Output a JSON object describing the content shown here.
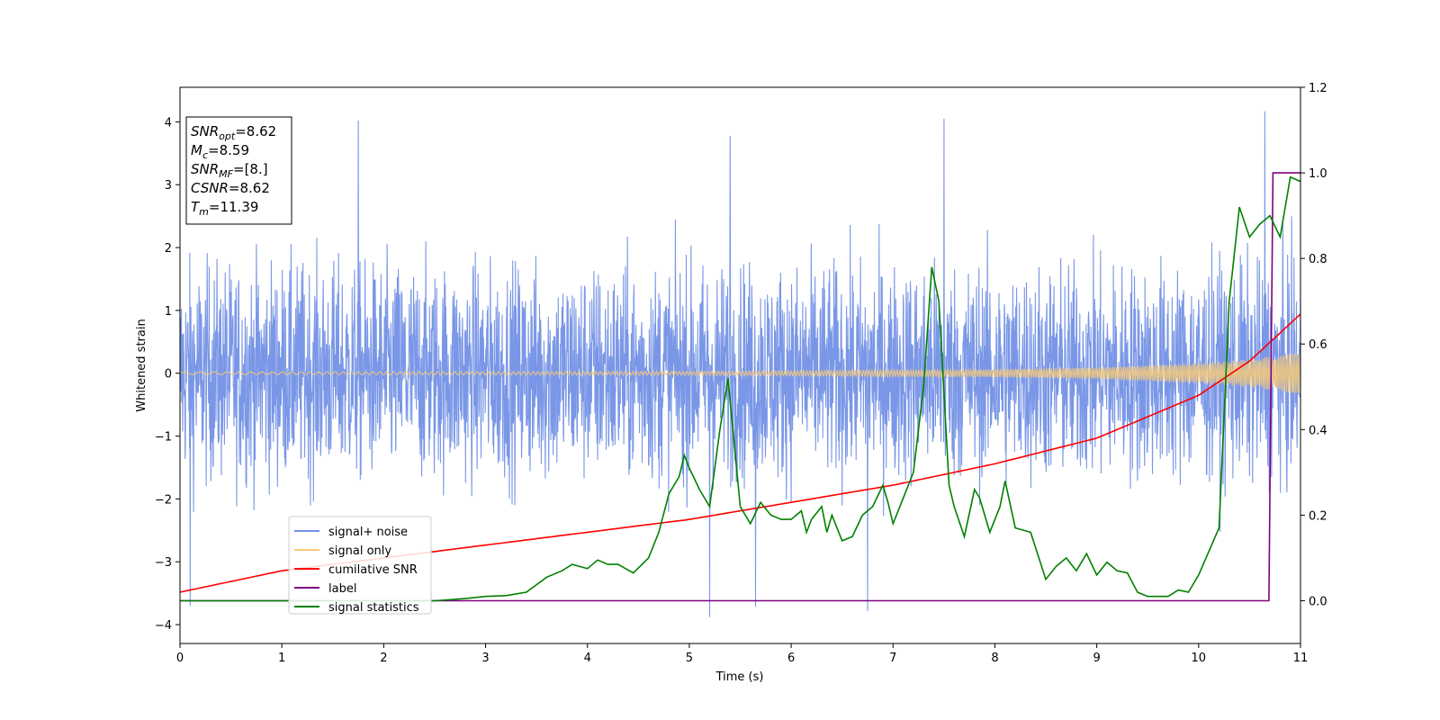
{
  "chart_data": {
    "type": "line",
    "xlabel": "Time (s)",
    "ylabel": "Whitened strain",
    "xlim": [
      0,
      11
    ],
    "ylim": [
      -4.3,
      4.55
    ],
    "y2lim": [
      -0.1,
      1.2
    ],
    "x_ticks": [
      "0",
      "1",
      "2",
      "3",
      "4",
      "5",
      "6",
      "7",
      "8",
      "9",
      "10",
      "11"
    ],
    "y_ticks": [
      "−4",
      "−3",
      "−2",
      "−1",
      "0",
      "1",
      "2",
      "3",
      "4"
    ],
    "y2_ticks": [
      "0.0",
      "0.2",
      "0.4",
      "0.6",
      "0.8",
      "1.0",
      "1.2"
    ],
    "legend_position": "lower-left",
    "info_box": {
      "position": "top-left",
      "lines": [
        {
          "italic": "SNR",
          "sub": "opt",
          "rest": "=8.62"
        },
        {
          "italic": "M",
          "sub": "c",
          "rest": "=8.59"
        },
        {
          "italic": "SNR",
          "sub": "MF",
          "rest": "=[8.]"
        },
        {
          "italic": "CSNR",
          "sub": "",
          "rest": "=8.62"
        },
        {
          "italic": "T",
          "sub": "m",
          "rest": "=11.39"
        }
      ]
    },
    "series": [
      {
        "name": "signal+ noise",
        "color": "#7391e6",
        "axis": "left",
        "kind": "noise-band",
        "core_range": [
          -1.6,
          1.6
        ],
        "peak_range": [
          -3.7,
          4.2
        ],
        "notable_peaks": [
          {
            "x": 1.75,
            "y": 4.02
          },
          {
            "x": 5.4,
            "y": 3.78
          },
          {
            "x": 5.2,
            "y": -3.88
          },
          {
            "x": 5.65,
            "y": -3.72
          },
          {
            "x": 6.75,
            "y": -3.78
          },
          {
            "x": 7.5,
            "y": 4.05
          },
          {
            "x": 10.65,
            "y": 4.17
          },
          {
            "x": 0.1,
            "y": -3.7
          }
        ]
      },
      {
        "name": "signal only",
        "color": "#f5c97a",
        "axis": "left",
        "kind": "chirp",
        "amplitude_at_x": [
          [
            0,
            0.02
          ],
          [
            5,
            0.03
          ],
          [
            8,
            0.06
          ],
          [
            9,
            0.09
          ],
          [
            10,
            0.16
          ],
          [
            10.5,
            0.22
          ],
          [
            11,
            0.33
          ]
        ]
      },
      {
        "name": "cumilative SNR",
        "color": "#ff0000",
        "axis": "right",
        "x": [
          0,
          1,
          2,
          3,
          4,
          5,
          6,
          7,
          8,
          9,
          10,
          10.5,
          11
        ],
        "y": [
          0.02,
          0.07,
          0.1,
          0.13,
          0.16,
          0.19,
          0.23,
          0.27,
          0.32,
          0.38,
          0.48,
          0.56,
          0.67
        ]
      },
      {
        "name": "label",
        "color": "#800080",
        "axis": "right",
        "x": [
          0,
          10.69,
          10.73,
          11
        ],
        "y": [
          0.0,
          0.0,
          1.0,
          1.0
        ]
      },
      {
        "name": "signal statistics",
        "color": "#008000",
        "axis": "right",
        "x": [
          0,
          0.5,
          1,
          1.5,
          2,
          2.5,
          2.8,
          3.0,
          3.2,
          3.4,
          3.6,
          3.75,
          3.85,
          4.0,
          4.1,
          4.2,
          4.3,
          4.45,
          4.6,
          4.7,
          4.8,
          4.9,
          4.95,
          5.0,
          5.1,
          5.2,
          5.3,
          5.38,
          5.5,
          5.6,
          5.7,
          5.8,
          5.9,
          6.0,
          6.1,
          6.15,
          6.2,
          6.3,
          6.35,
          6.4,
          6.5,
          6.6,
          6.7,
          6.8,
          6.9,
          6.95,
          7.0,
          7.1,
          7.2,
          7.3,
          7.38,
          7.45,
          7.55,
          7.6,
          7.7,
          7.8,
          7.85,
          7.95,
          8.05,
          8.1,
          8.2,
          8.35,
          8.5,
          8.6,
          8.7,
          8.8,
          8.9,
          9.0,
          9.1,
          9.2,
          9.3,
          9.4,
          9.5,
          9.7,
          9.8,
          9.9,
          10.0,
          10.2,
          10.3,
          10.4,
          10.5,
          10.6,
          10.7,
          10.8,
          10.9,
          11.0
        ],
        "y": [
          0.0,
          0.0,
          0.0,
          0.0,
          0.0,
          0.0,
          0.005,
          0.01,
          0.012,
          0.02,
          0.055,
          0.07,
          0.085,
          0.075,
          0.095,
          0.085,
          0.085,
          0.065,
          0.1,
          0.16,
          0.25,
          0.29,
          0.34,
          0.31,
          0.26,
          0.22,
          0.4,
          0.52,
          0.22,
          0.18,
          0.23,
          0.2,
          0.19,
          0.19,
          0.21,
          0.16,
          0.19,
          0.22,
          0.16,
          0.2,
          0.14,
          0.15,
          0.2,
          0.22,
          0.27,
          0.23,
          0.18,
          0.24,
          0.3,
          0.5,
          0.78,
          0.7,
          0.27,
          0.22,
          0.15,
          0.26,
          0.24,
          0.16,
          0.22,
          0.28,
          0.17,
          0.16,
          0.05,
          0.08,
          0.1,
          0.07,
          0.11,
          0.06,
          0.09,
          0.07,
          0.065,
          0.02,
          0.01,
          0.01,
          0.025,
          0.02,
          0.06,
          0.17,
          0.7,
          0.92,
          0.85,
          0.88,
          0.9,
          0.85,
          0.99,
          0.98
        ]
      }
    ]
  }
}
